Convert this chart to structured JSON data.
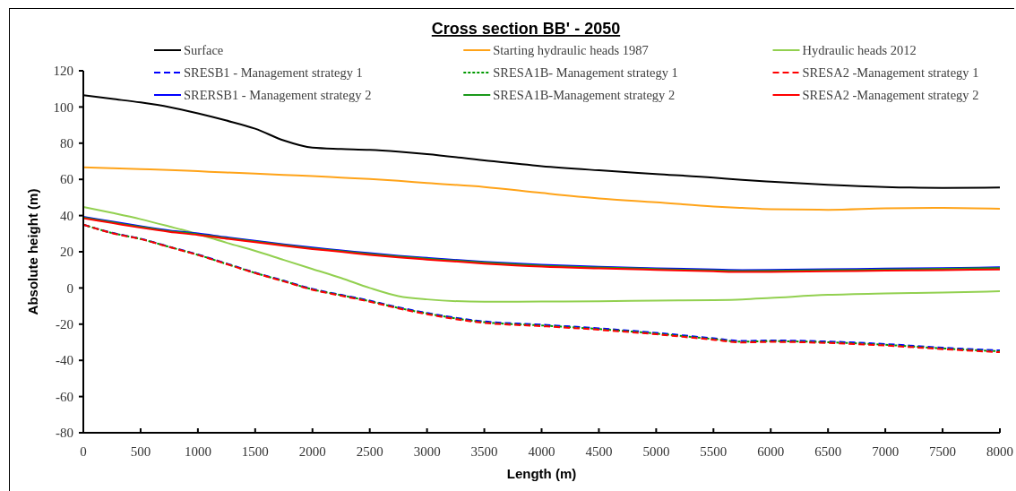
{
  "chart_data": {
    "type": "line",
    "title": "Cross section BB' - 2050",
    "xlabel": "Length (m)",
    "ylabel": "Absolute height (m)",
    "legend": "top",
    "x": [
      0,
      250,
      500,
      750,
      1000,
      1250,
      1500,
      1750,
      2000,
      2250,
      2500,
      2750,
      3000,
      3500,
      4000,
      4500,
      5000,
      5500,
      5750,
      6000,
      6500,
      7000,
      7500,
      8000
    ],
    "series": [
      {
        "name": "Surface",
        "color": "#000000",
        "line_style": "solid",
        "values": [
          106.5,
          104.5,
          102.5,
          100,
          96.5,
          92.5,
          88,
          81.5,
          77.5,
          76.8,
          76.3,
          75.3,
          74,
          70.5,
          67.3,
          65,
          63,
          61,
          59.7,
          58.7,
          57,
          55.8,
          55.3,
          55.5
        ]
      },
      {
        "name": "Starting hydraulic heads 1987",
        "color": "#ffa318",
        "line_style": "solid",
        "values": [
          66.7,
          66.2,
          65.7,
          65.2,
          64.5,
          63.8,
          63.2,
          62.5,
          61.8,
          61,
          60.2,
          59.2,
          58,
          55.8,
          52.5,
          49.5,
          47.3,
          45,
          44.2,
          43.5,
          43.2,
          44,
          44.3,
          43.8
        ]
      },
      {
        "name": "Hydraulic heads 2012",
        "color": "#92d050",
        "line_style": "solid",
        "values": [
          44.8,
          41.5,
          38,
          34,
          29.8,
          25,
          20.5,
          15.5,
          10.5,
          5.5,
          0,
          -4.5,
          -6.3,
          -7.6,
          -7.5,
          -7.3,
          -7,
          -6.7,
          -6.3,
          -5.5,
          -3.8,
          -3,
          -2.5,
          -1.8
        ]
      },
      {
        "name": "SRESB1 - Management strategy 1",
        "color": "#0000ff",
        "line_style": "dashed",
        "values": [
          35,
          30.5,
          27.2,
          22.8,
          18.5,
          13.5,
          8.5,
          4,
          -0.5,
          -3.8,
          -7,
          -10.7,
          -13.8,
          -18.5,
          -20.3,
          -22.3,
          -24.8,
          -27.8,
          -29.3,
          -29,
          -29.6,
          -31,
          -33,
          -34.5
        ]
      },
      {
        "name": "SRESA1B- Management strategy 1",
        "color": "#009900",
        "line_style": "dotted",
        "values": [
          35,
          30.4,
          27.1,
          22.7,
          18.3,
          13.3,
          8.3,
          3.8,
          -0.8,
          -4,
          -7.3,
          -11,
          -14.1,
          -18.9,
          -20.7,
          -22.7,
          -25.2,
          -28.2,
          -29.7,
          -29.4,
          -30,
          -31.4,
          -33.4,
          -35
        ]
      },
      {
        "name": "SRESA2 -Management strategy 1",
        "color": "#ff0000",
        "line_style": "dashed",
        "values": [
          35,
          30.3,
          27,
          22.6,
          18.2,
          13.2,
          8.2,
          3.6,
          -1,
          -4.3,
          -7.6,
          -11.3,
          -14.5,
          -19.3,
          -21.1,
          -23.1,
          -25.6,
          -28.6,
          -30.1,
          -29.8,
          -30.4,
          -31.8,
          -33.8,
          -35.5
        ]
      },
      {
        "name": "SRERSB1 - Management strategy 2",
        "color": "#0000ff",
        "line_style": "solid",
        "values": [
          39.3,
          36.7,
          34.1,
          31.8,
          30.1,
          28,
          26.1,
          24.1,
          22.3,
          20.8,
          19.2,
          17.8,
          16.6,
          14.4,
          12.8,
          11.7,
          10.9,
          10.2,
          9.9,
          10,
          10.3,
          10.7,
          11,
          11.4
        ]
      },
      {
        "name": "SRESA1B-Management strategy 2",
        "color": "#1a991a",
        "line_style": "solid",
        "values": [
          38.9,
          36.3,
          33.7,
          31.4,
          29.7,
          27.6,
          25.7,
          23.7,
          21.9,
          20.4,
          18.8,
          17.4,
          16.2,
          14,
          12.3,
          11.3,
          10.5,
          9.7,
          9.4,
          9.5,
          9.8,
          10.2,
          10.6,
          11
        ]
      },
      {
        "name": "SRESA2 -Management strategy 2",
        "color": "#ff0000",
        "line_style": "solid",
        "values": [
          38.5,
          35.9,
          33.3,
          31,
          29.3,
          27.2,
          25.3,
          23.3,
          21.5,
          20,
          18.3,
          16.9,
          15.7,
          13.5,
          11.8,
          10.8,
          10,
          9.2,
          8.8,
          8.9,
          9.2,
          9.6,
          9.9,
          10.2
        ]
      }
    ],
    "xlim": [
      0,
      8000
    ],
    "ylim": [
      -80,
      120
    ],
    "xticks": [
      0,
      500,
      1000,
      1500,
      2000,
      2500,
      3000,
      3500,
      4000,
      4500,
      5000,
      5500,
      6000,
      6500,
      7000,
      7500,
      8000
    ],
    "yticks": [
      -80,
      -60,
      -40,
      -20,
      0,
      20,
      40,
      60,
      80,
      100,
      120
    ]
  }
}
